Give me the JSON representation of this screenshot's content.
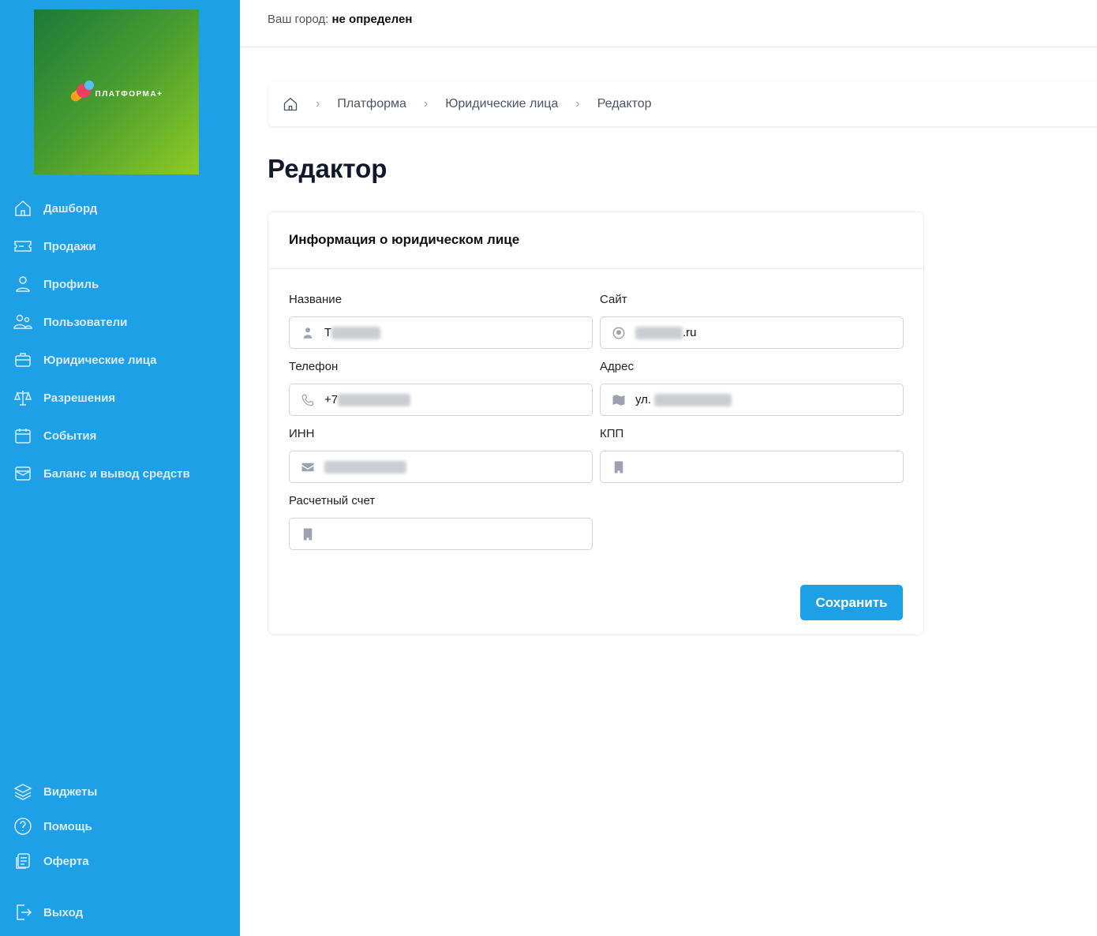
{
  "brand": {
    "name": "ПЛАТФОРМА+"
  },
  "sidebar": {
    "items": [
      {
        "label": "Дашборд",
        "icon": "home-icon"
      },
      {
        "label": "Продажи",
        "icon": "ticket-icon"
      },
      {
        "label": "Профиль",
        "icon": "user-icon"
      },
      {
        "label": "Пользователи",
        "icon": "users-icon"
      },
      {
        "label": "Юридические лица",
        "icon": "briefcase-icon"
      },
      {
        "label": "Разрешения",
        "icon": "scale-icon"
      },
      {
        "label": "События",
        "icon": "calendar-icon"
      },
      {
        "label": "Баланс и вывод средств",
        "icon": "wallet-icon"
      }
    ],
    "bottom": [
      {
        "label": "Виджеты",
        "icon": "layers-icon"
      },
      {
        "label": "Помощь",
        "icon": "help-icon"
      },
      {
        "label": "Оферта",
        "icon": "document-icon"
      },
      {
        "label": "Выход",
        "icon": "logout-icon"
      }
    ]
  },
  "topbar": {
    "city_label": "Ваш город:",
    "city_value": "не определен"
  },
  "breadcrumb": [
    "Платформа",
    "Юридические лица",
    "Редактор"
  ],
  "page_title": "Редактор",
  "card": {
    "title": "Информация о юридическом лице",
    "fields": {
      "name": {
        "label": "Название",
        "value": "T"
      },
      "site": {
        "label": "Сайт",
        "value": ".ru"
      },
      "phone": {
        "label": "Телефон",
        "value": "+7"
      },
      "address": {
        "label": "Адрес",
        "value": "ул."
      },
      "inn": {
        "label": "ИНН",
        "value": ""
      },
      "kpp": {
        "label": "КПП",
        "value": ""
      },
      "account": {
        "label": "Расчетный счет",
        "value": ""
      }
    },
    "save_label": "Сохранить"
  },
  "colors": {
    "accent": "#1ea0e6"
  }
}
